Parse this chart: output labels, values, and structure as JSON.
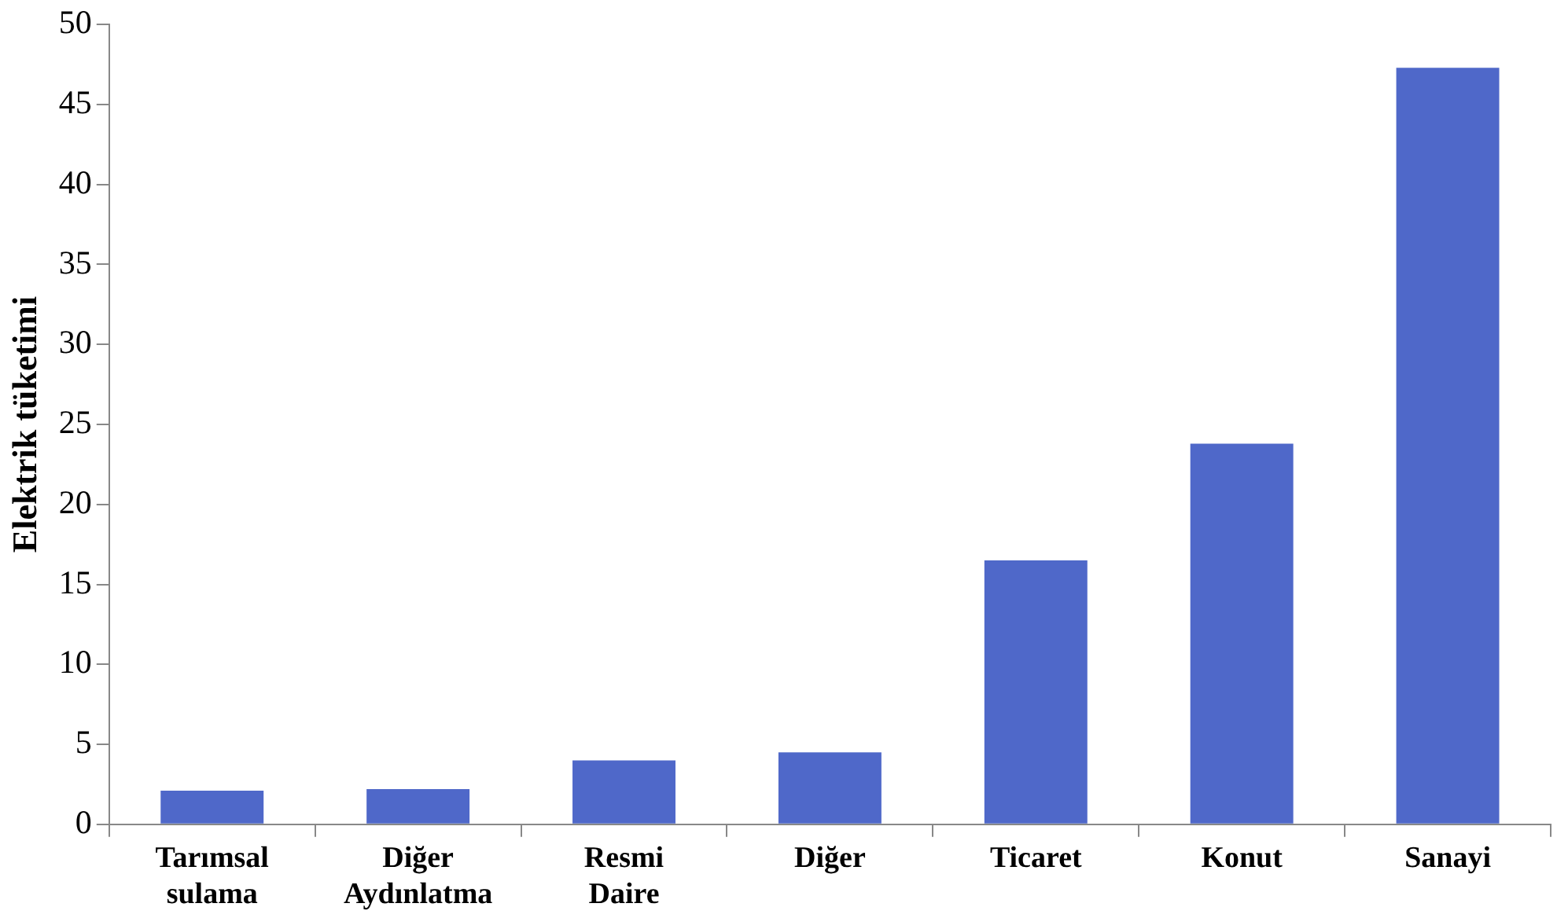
{
  "chart_data": {
    "type": "bar",
    "ylabel": "Elektrik tüketimi",
    "categories": [
      "Tarımsal sulama",
      "Diğer Aydınlatma",
      "Resmi Daire",
      "Diğer",
      "Ticaret",
      "Konut",
      "Sanayi"
    ],
    "values": [
      2.1,
      2.2,
      4.0,
      4.5,
      16.5,
      23.8,
      47.3
    ],
    "color": "#4f68c9",
    "ylim": [
      0,
      50
    ],
    "yticks": [
      0,
      5,
      10,
      15,
      20,
      25,
      30,
      35,
      40,
      45,
      50
    ],
    "grid": false,
    "legend": false
  }
}
